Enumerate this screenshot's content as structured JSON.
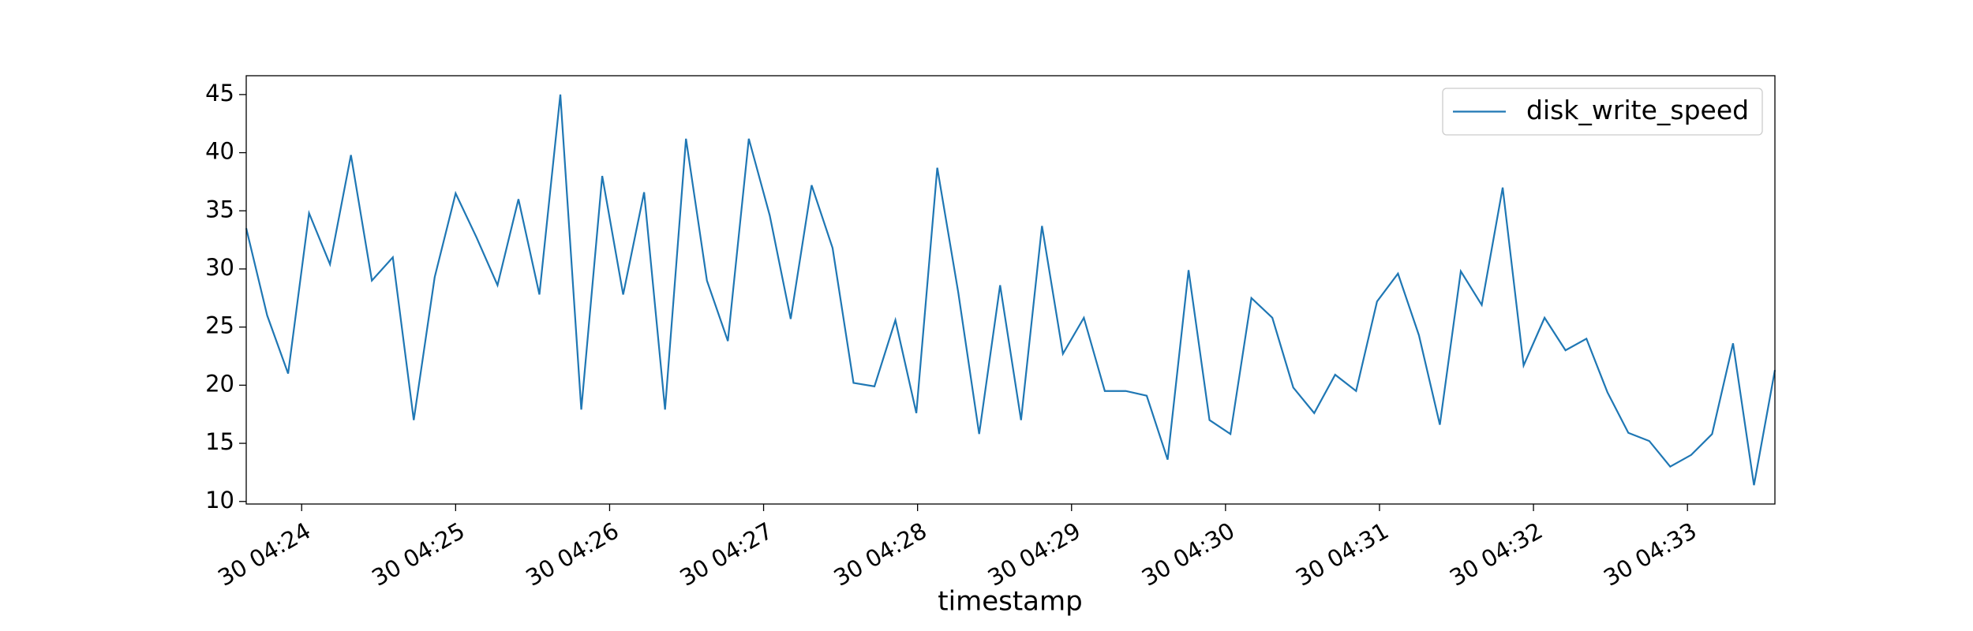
{
  "chart_data": {
    "type": "line",
    "xlabel": "timestamp",
    "x": [
      23.64,
      23.776,
      23.912,
      24.048,
      24.184,
      24.32,
      24.456,
      24.592,
      24.728,
      24.864,
      25.0,
      25.136,
      25.272,
      25.408,
      25.544,
      25.68,
      25.816,
      25.952,
      26.088,
      26.224,
      26.36,
      26.496,
      26.632,
      26.768,
      26.904,
      27.04,
      27.176,
      27.312,
      27.448,
      27.584,
      27.72,
      27.856,
      27.992,
      28.128,
      28.264,
      28.4,
      28.536,
      28.672,
      28.808,
      28.944,
      29.08,
      29.216,
      29.352,
      29.488,
      29.624,
      29.76,
      29.896,
      30.032,
      30.168,
      30.304,
      30.44,
      30.576,
      30.712,
      30.848,
      30.984,
      31.12,
      31.256,
      31.392,
      31.528,
      31.664,
      31.8,
      31.936,
      32.072,
      32.208,
      32.344,
      32.48,
      32.616,
      32.752,
      32.888,
      33.024,
      33.16,
      33.296,
      33.432,
      33.568
    ],
    "series": [
      {
        "name": "disk_write_speed",
        "color": "#1f77b4",
        "values": [
          33.5,
          26,
          21,
          34.8,
          30.4,
          39.8,
          29,
          31,
          17,
          29.3,
          36.5,
          32.7,
          28.6,
          36,
          27.8,
          45,
          17.9,
          38,
          27.8,
          36.6,
          17.9,
          41.2,
          29,
          23.8,
          41.2,
          34.6,
          25.7,
          37.2,
          31.8,
          20.2,
          19.9,
          25.6,
          17.6,
          38.7,
          28,
          15.8,
          28.6,
          17,
          33.7,
          22.7,
          25.8,
          19.5,
          19.5,
          19.1,
          13.6,
          29.9,
          17,
          15.8,
          27.5,
          25.8,
          19.8,
          17.6,
          20.9,
          19.5,
          27.2,
          29.6,
          24.3,
          16.6,
          29.8,
          26.9,
          37,
          21.7,
          25.8,
          23,
          24,
          19.4,
          15.9,
          15.2,
          13,
          14,
          15.8,
          23.6,
          11.4,
          21.3
        ]
      }
    ],
    "xlim": [
      23.64,
      33.568
    ],
    "xticks": [
      {
        "value": 24,
        "label": "30 04:24"
      },
      {
        "value": 25,
        "label": "30 04:25"
      },
      {
        "value": 26,
        "label": "30 04:26"
      },
      {
        "value": 27,
        "label": "30 04:27"
      },
      {
        "value": 28,
        "label": "30 04:28"
      },
      {
        "value": 29,
        "label": "30 04:29"
      },
      {
        "value": 30,
        "label": "30 04:30"
      },
      {
        "value": 31,
        "label": "30 04:31"
      },
      {
        "value": 32,
        "label": "30 04:32"
      },
      {
        "value": 33,
        "label": "30 04:33"
      }
    ],
    "ylim": [
      9.78,
      46.62
    ],
    "yticks": [
      10,
      15,
      20,
      25,
      30,
      35,
      40,
      45
    ],
    "legend": "upper right"
  }
}
